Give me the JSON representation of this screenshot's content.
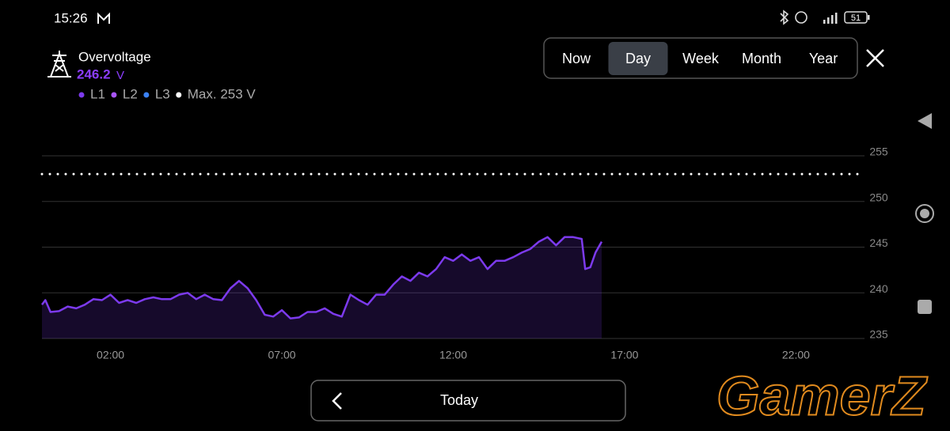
{
  "status_bar": {
    "time": "15:26",
    "battery": "51"
  },
  "header": {
    "title": "Overvoltage",
    "reading": "246.2",
    "unit": "V"
  },
  "tabs": {
    "items": [
      "Now",
      "Day",
      "Week",
      "Month",
      "Year"
    ],
    "selected": 1
  },
  "chart_data": {
    "type": "line",
    "x": [
      0,
      0.1,
      0.25,
      0.5,
      0.75,
      1,
      1.25,
      1.5,
      1.75,
      2,
      2.25,
      2.5,
      2.75,
      3,
      3.25,
      3.5,
      3.75,
      4,
      4.25,
      4.5,
      4.75,
      5,
      5.25,
      5.5,
      5.75,
      6,
      6.25,
      6.5,
      6.75,
      7,
      7.25,
      7.5,
      7.75,
      8,
      8.25,
      8.5,
      8.75,
      9,
      9.25,
      9.5,
      9.75,
      10,
      10.25,
      10.5,
      10.75,
      11,
      11.25,
      11.5,
      11.75,
      12,
      12.25,
      12.5,
      12.75,
      13,
      13.25,
      13.5,
      13.75,
      14,
      14.25,
      14.5,
      14.75,
      15,
      15.25,
      15.5,
      15.75,
      15.85,
      16,
      16.15,
      16.33
    ],
    "series": [
      {
        "name": "L1",
        "color": "#7c3aed",
        "values": [
          238.7,
          239.2,
          237.9,
          238.0,
          238.5,
          238.3,
          238.7,
          239.3,
          239.2,
          239.8,
          238.9,
          239.2,
          238.9,
          239.3,
          239.5,
          239.3,
          239.3,
          239.8,
          240.0,
          239.3,
          239.8,
          239.3,
          239.2,
          240.5,
          241.3,
          240.5,
          239.2,
          237.6,
          237.4,
          238.1,
          237.2,
          237.3,
          237.9,
          237.9,
          238.3,
          237.7,
          237.4,
          239.8,
          239.2,
          238.7,
          239.8,
          239.8,
          240.9,
          241.8,
          241.3,
          242.2,
          241.8,
          242.6,
          243.9,
          243.5,
          244.2,
          243.5,
          243.9,
          242.6,
          243.5,
          243.5,
          243.9,
          244.4,
          244.8,
          245.6,
          246.1,
          245.2,
          246.1,
          246.1,
          245.9,
          242.6,
          242.8,
          244.4,
          245.6
        ]
      }
    ],
    "other_phases": [
      {
        "name": "L2",
        "color": "#a855f7"
      },
      {
        "name": "L3",
        "color": "#3b82f6"
      }
    ],
    "max_line": {
      "value": 253,
      "label": "Max. 253 V",
      "color": "#ffffff"
    },
    "xlim": [
      0,
      24
    ],
    "xticks": [
      {
        "value": 2,
        "label": "02:00"
      },
      {
        "value": 7,
        "label": "07:00"
      },
      {
        "value": 12,
        "label": "12:00"
      },
      {
        "value": 17,
        "label": "17:00"
      },
      {
        "value": 22,
        "label": "22:00"
      }
    ],
    "ylim": [
      235,
      255
    ],
    "yticks": [
      235,
      240,
      245,
      250,
      255
    ],
    "grid": true
  },
  "footer": {
    "button": "Today"
  },
  "watermark": "GamerZ"
}
